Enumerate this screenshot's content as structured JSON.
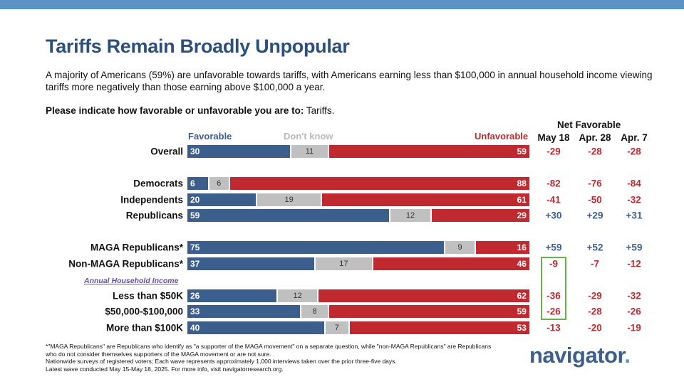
{
  "title": "Tariffs Remain Broadly Unpopular",
  "subtitle": "A majority of Americans (59%) are unfavorable towards tariffs, with Americans earning less than $100,000 in annual household income viewing tariffs more negatively than those earning above $100,000 a year.",
  "question_bold": "Please indicate how favorable or unfavorable you are to:",
  "question_item": " Tariffs.",
  "income_group_label": "Annual Household Income",
  "footnote": [
    "*\"MAGA Republicans\" are Republicans who identify as \"a supporter of the MAGA movement\" on a separate question, while \"non-MAGA Republicans\" are Republicans who do not consider themselves supporters of the MAGA movement or are not sure.",
    "Nationwide surveys of registered voters; Each wave represents approximately 1,000 interviews taken over the prior three-five days.",
    "Latest wave conducted May 15-May 18, 2025. For more info, visit navigatorresearch.org."
  ],
  "logo": "navigator",
  "colors": {
    "favorable": "#3c5e8c",
    "dont_know": "#c0c0c0",
    "unfavorable": "#bf2a30",
    "band": "#5b93c7"
  },
  "chart_data": {
    "type": "bar",
    "stacked": true,
    "orientation": "horizontal",
    "legend": [
      "Favorable",
      "Don't know",
      "Unfavorable"
    ],
    "legend_placement": "top",
    "xlim": [
      0,
      100
    ],
    "categories": [
      "Overall",
      "Democrats",
      "Independents",
      "Republicans",
      "MAGA Republicans*",
      "Non-MAGA Republicans*",
      "Less than $50K",
      "$50,000-$100,000",
      "More than $100K"
    ],
    "series": [
      {
        "name": "Favorable",
        "values": [
          30,
          6,
          20,
          59,
          75,
          37,
          26,
          33,
          40
        ]
      },
      {
        "name": "Don't know",
        "values": [
          11,
          6,
          19,
          12,
          9,
          17,
          12,
          8,
          7
        ]
      },
      {
        "name": "Unfavorable",
        "values": [
          59,
          88,
          61,
          29,
          16,
          46,
          62,
          59,
          53
        ]
      }
    ],
    "net_favorable": {
      "title": "Net Favorable",
      "columns": [
        "May 18",
        "Apr. 28",
        "Apr. 7"
      ],
      "values": [
        [
          "-29",
          "-28",
          "-28"
        ],
        [
          "-82",
          "-76",
          "-84"
        ],
        [
          "-41",
          "-50",
          "-32"
        ],
        [
          "+30",
          "+29",
          "+31"
        ],
        [
          "+59",
          "+52",
          "+59"
        ],
        [
          "-9",
          "-7",
          "-12"
        ],
        [
          "-36",
          "-29",
          "-32"
        ],
        [
          "-26",
          "-28",
          "-26"
        ],
        [
          "-13",
          "-20",
          "-19"
        ]
      ]
    }
  }
}
